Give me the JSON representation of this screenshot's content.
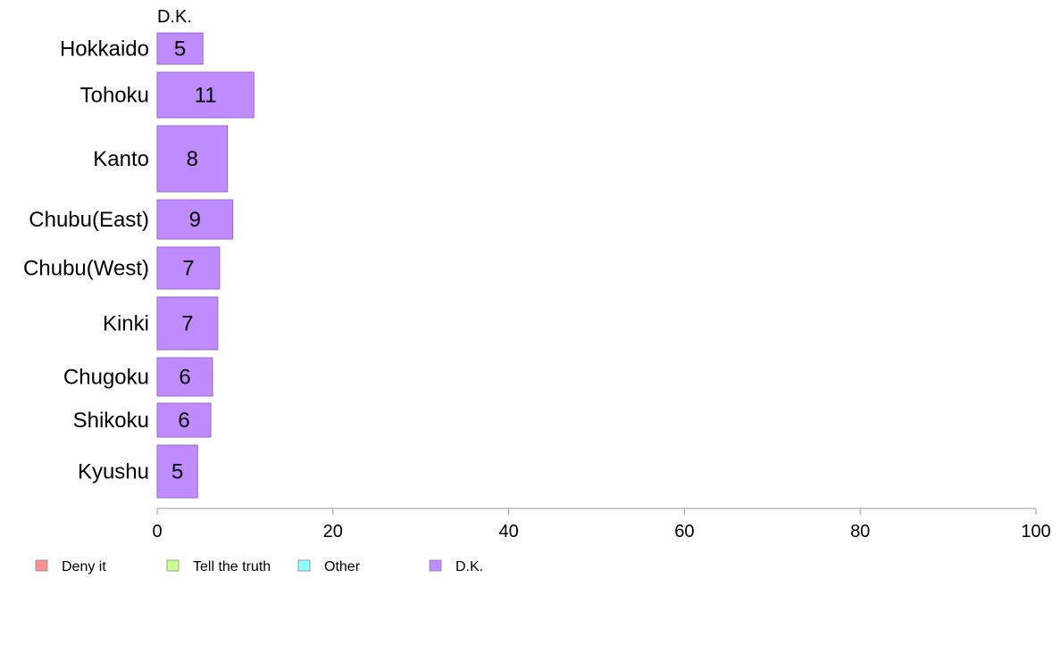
{
  "chart_data": {
    "type": "bar",
    "orientation": "horizontal",
    "stacked": true,
    "panel_label": "D.K.",
    "categories": [
      "Hokkaido",
      "Tohoku",
      "Kanto",
      "Chubu(East)",
      "Chubu(West)",
      "Kinki",
      "Chugoku",
      "Shikoku",
      "Kyushu"
    ],
    "series": [
      {
        "name": "D.K.",
        "values": [
          5.2,
          11,
          8,
          8.6,
          7.1,
          6.9,
          6.3,
          6.1,
          4.6
        ],
        "labels": [
          "5",
          "11",
          "8",
          "9",
          "7",
          "7",
          "6",
          "6",
          "5"
        ]
      }
    ],
    "xlim": [
      0,
      100
    ],
    "xticks": [
      0,
      20,
      40,
      60,
      80,
      100
    ],
    "xticklabels": [
      "0",
      "20",
      "40",
      "60",
      "80",
      "100"
    ],
    "grid": false,
    "legend": {
      "placement": "bottom-left",
      "entries": [
        {
          "label": "Deny it",
          "color": "#ff8f8f"
        },
        {
          "label": "Tell the truth",
          "color": "#c8ff8c"
        },
        {
          "label": "Other",
          "color": "#8cffff"
        },
        {
          "label": "D.K.",
          "color": "#bf8cff"
        }
      ]
    },
    "colors": {
      "bar_fill": "#bf8cff",
      "bar_stroke": "#9a66cc",
      "axis": "#999999"
    }
  }
}
